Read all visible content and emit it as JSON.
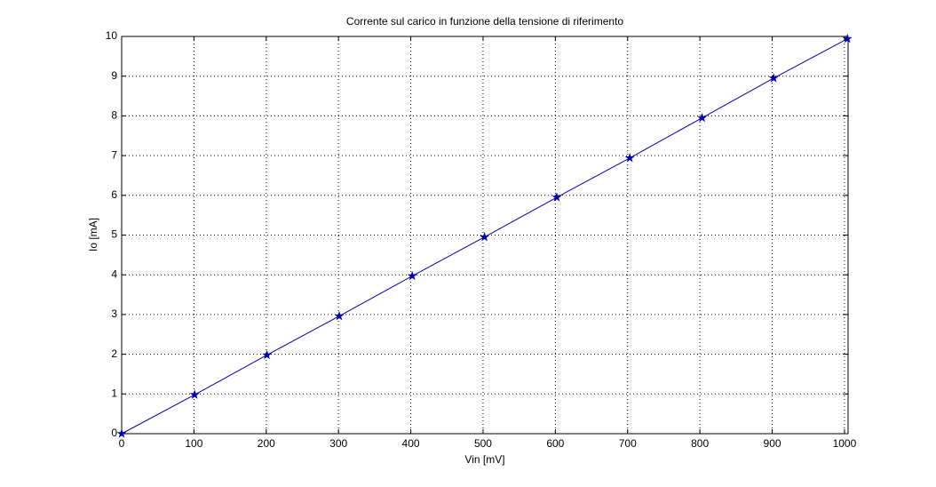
{
  "chart_data": {
    "type": "line",
    "title": "Corrente sul carico in funzione della tensione di riferimento",
    "x_label": "Vin [mV]",
    "y_label": "Io [mA]",
    "x": [
      0,
      101,
      201,
      301,
      402,
      502,
      602,
      703,
      803,
      902,
      1004
    ],
    "series": [
      {
        "name": "Io",
        "color": "#0000b0",
        "marker": "star",
        "values": [
          0,
          0.98,
          1.98,
          2.96,
          3.97,
          4.95,
          5.95,
          6.94,
          7.95,
          8.95,
          9.94
        ]
      }
    ],
    "xlim": [
      0,
      1005
    ],
    "ylim": [
      0,
      10
    ],
    "xticks": [
      0,
      100,
      200,
      300,
      400,
      500,
      600,
      700,
      800,
      900,
      1000
    ],
    "yticks": [
      0,
      1,
      2,
      3,
      4,
      5,
      6,
      7,
      8,
      9,
      10
    ],
    "grid": true
  }
}
